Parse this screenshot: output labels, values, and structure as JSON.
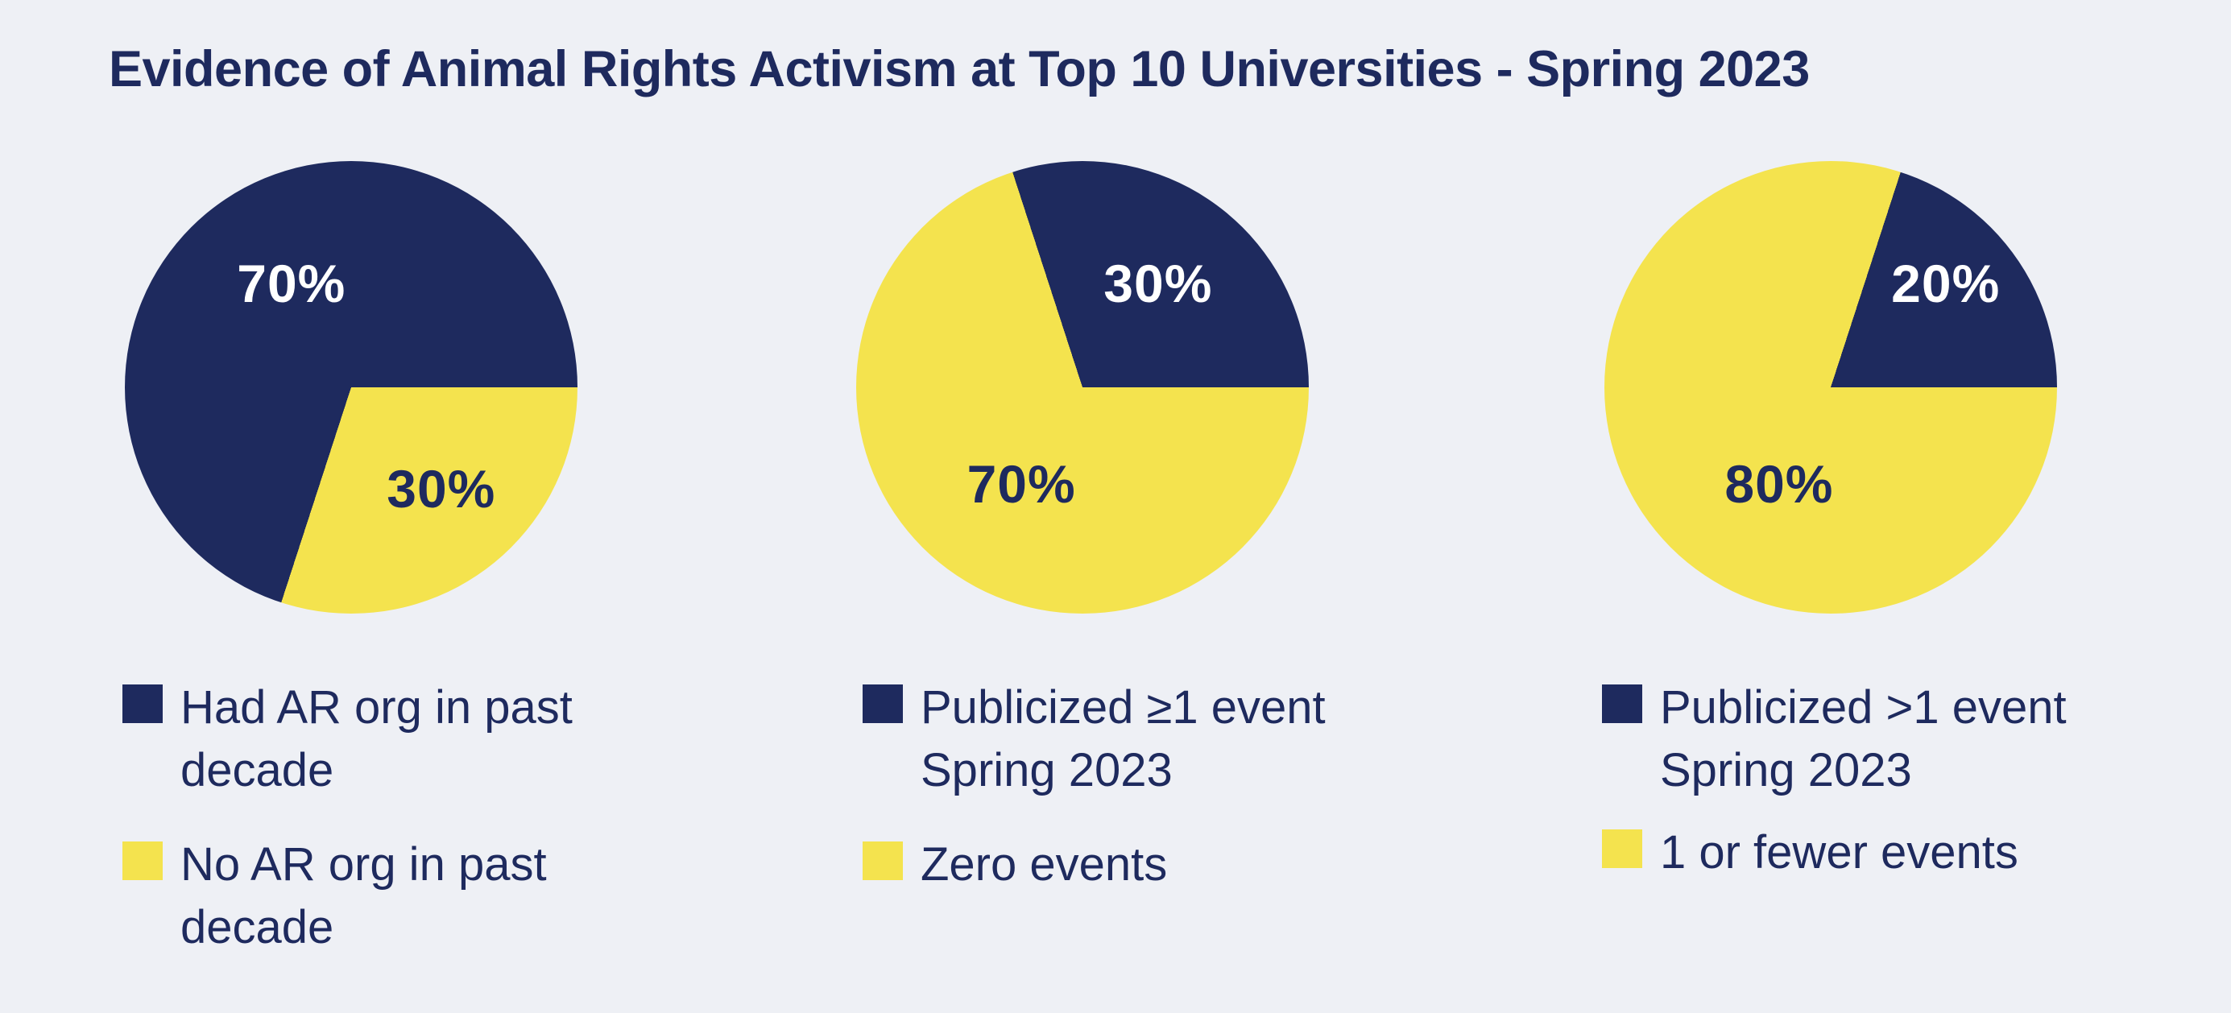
{
  "title": "Evidence of Animal Rights Activism at Top 10 Universities - Spring 2023",
  "palette": {
    "navy": "#1e2a5e",
    "yellow": "#f4e34e",
    "background": "#eef0f5",
    "text": "#1e2a5e",
    "label_on_navy": "#ffffff"
  },
  "chart_data": [
    {
      "type": "pie",
      "categories": [
        "Had AR org in past decade",
        "No AR org in past decade"
      ],
      "values": [
        70,
        30
      ],
      "unit": "%",
      "rotation_deg": 198,
      "legend_position": "bottom-left",
      "slices": [
        {
          "label": "Had AR org in past decade",
          "value": 70,
          "color": "#1e2a5e",
          "value_label": "70%",
          "value_label_color": "#ffffff",
          "x_pct": 36.8,
          "y_pct": 27.0
        },
        {
          "label": "No AR org in past decade",
          "value": 30,
          "color": "#f4e34e",
          "value_label": "30%",
          "value_label_color": "#1e2a5e",
          "x_pct": 69.9,
          "y_pct": 72.4
        }
      ],
      "legend": [
        {
          "label": "Had AR org in past\ndecade",
          "color": "#1e2a5e"
        },
        {
          "label": "No AR org in past\ndecade",
          "color": "#f4e34e"
        }
      ]
    },
    {
      "type": "pie",
      "categories": [
        "Publicized ≥1 event Spring 2023",
        "Zero events"
      ],
      "values": [
        30,
        70
      ],
      "unit": "%",
      "rotation_deg": 342,
      "legend_position": "bottom-left",
      "slices": [
        {
          "label": "Publicized ≥1 event Spring 2023",
          "value": 30,
          "color": "#1e2a5e",
          "value_label": "30%",
          "value_label_color": "#ffffff",
          "x_pct": 66.7,
          "y_pct": 27.0
        },
        {
          "label": "Zero events",
          "value": 70,
          "color": "#f4e34e",
          "value_label": "70%",
          "value_label_color": "#1e2a5e",
          "x_pct": 36.5,
          "y_pct": 71.4
        }
      ],
      "legend": [
        {
          "label": "Publicized ≥1 event\nSpring 2023",
          "color": "#1e2a5e"
        },
        {
          "label": "Zero events",
          "color": "#f4e34e"
        }
      ]
    },
    {
      "type": "pie",
      "categories": [
        "Publicized >1 event Spring 2023",
        "1 or fewer events"
      ],
      "values": [
        20,
        80
      ],
      "unit": "%",
      "rotation_deg": 18,
      "legend_position": "bottom-left",
      "slices": [
        {
          "label": "Publicized >1 event Spring 2023",
          "value": 20,
          "color": "#1e2a5e",
          "value_label": "20%",
          "value_label_color": "#ffffff",
          "x_pct": 75.4,
          "y_pct": 27.0
        },
        {
          "label": "1 or fewer events",
          "value": 80,
          "color": "#f4e34e",
          "value_label": "80%",
          "value_label_color": "#1e2a5e",
          "x_pct": 38.6,
          "y_pct": 71.4
        }
      ],
      "legend": [
        {
          "label": "Publicized >1 event\nSpring 2023",
          "color": "#1e2a5e"
        },
        {
          "label": "1 or fewer events",
          "color": "#f4e34e"
        }
      ]
    }
  ]
}
